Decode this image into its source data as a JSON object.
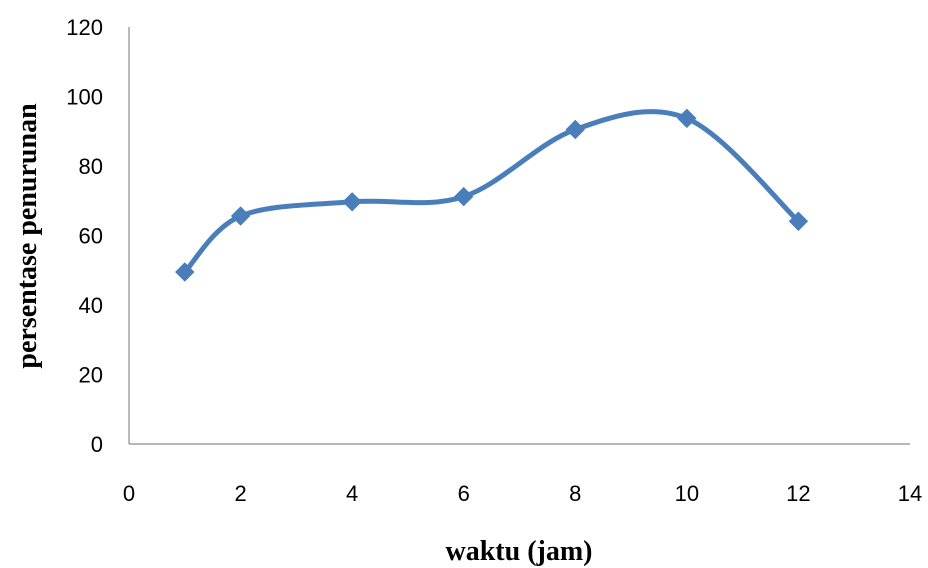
{
  "chart_data": {
    "type": "line",
    "smooth": true,
    "title": "",
    "xlabel": "waktu (jam)",
    "ylabel": "persentase penurunan",
    "xlim": [
      0,
      14
    ],
    "ylim": [
      0,
      120
    ],
    "x_ticks": [
      0,
      2,
      4,
      6,
      8,
      10,
      12,
      14
    ],
    "y_ticks": [
      0,
      20,
      40,
      60,
      80,
      100,
      120
    ],
    "grid": false,
    "legend": "none",
    "series": [
      {
        "color": "#4a7ebb",
        "marker": "diamond",
        "x": [
          1,
          2,
          4,
          6,
          8,
          10,
          12
        ],
        "y": [
          49.5,
          65.6,
          69.7,
          71.2,
          90.5,
          93.7,
          64.1
        ]
      }
    ]
  }
}
